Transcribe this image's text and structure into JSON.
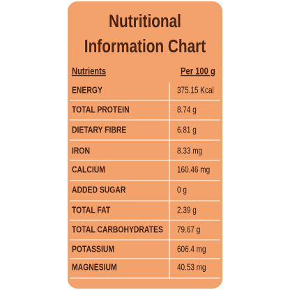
{
  "header": {
    "title": [
      "Nutritional",
      "Information Chart"
    ]
  },
  "table": {
    "columns": [
      "Nutrients",
      "Per 100 g"
    ],
    "rows": [
      [
        "ENERGY",
        "375.15 Kcal"
      ],
      [
        "TOTAL PROTEIN",
        "8.74 g"
      ],
      [
        "DIETARY FIBRE",
        "6.81 g"
      ],
      [
        "IRON",
        "8.33 mg"
      ],
      [
        "CALCIUM",
        "160.46 mg"
      ],
      [
        "ADDED SUGAR",
        "0 g"
      ],
      [
        "TOTAL FAT",
        "2.39 g"
      ],
      [
        "TOTAL CARBOHYDRATES",
        "79.67 g"
      ],
      [
        "POTASSIUM",
        "606.4 mg"
      ],
      [
        "MAGNESIUM",
        "40.53 mg"
      ]
    ]
  }
}
